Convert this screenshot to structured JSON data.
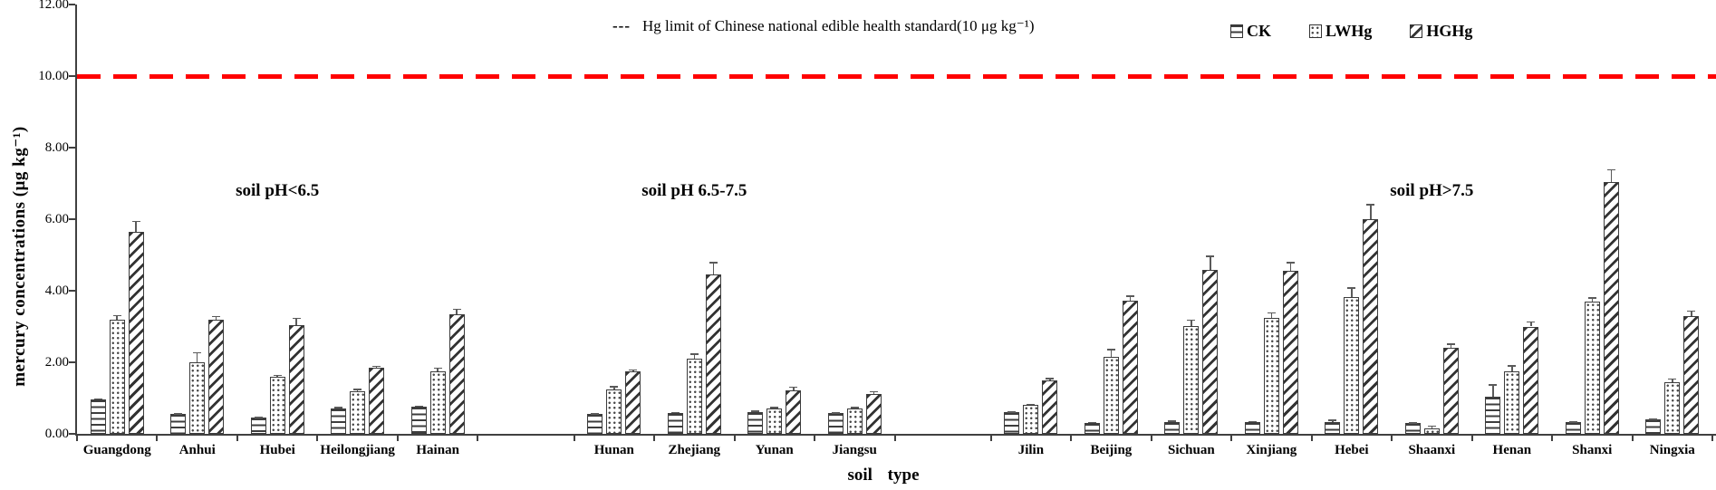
{
  "figure": {
    "limit_annotation": {
      "dash": "---",
      "text": "Hg limit of Chinese national edible health standard(10 μg kg⁻¹)"
    },
    "colors": {
      "limit_line": "#FF0000",
      "bar_outline": "#3C3C3C",
      "axis": "#404040"
    }
  },
  "chart_data": {
    "type": "bar",
    "title": "",
    "ylabel": "mercury concentrations (μg kg⁻¹)",
    "xlabel": "soil type",
    "ylim": [
      0,
      12
    ],
    "ytick_step": 2,
    "ytick_labels": [
      "0.00",
      "2.00",
      "4.00",
      "6.00",
      "8.00",
      "10.00",
      "12.00"
    ],
    "grid": false,
    "legend_position": "top-right",
    "series_names": [
      "CK",
      "LWHg",
      "HGHg"
    ],
    "legend": [
      {
        "label": "CK",
        "pattern": "horizontal-stripes"
      },
      {
        "label": "LWHg",
        "pattern": "dots"
      },
      {
        "label": "HGHg",
        "pattern": "diagonal-stripes"
      }
    ],
    "limit_line": {
      "value": 10,
      "style": "dashed",
      "color": "#FF0000",
      "label": "Hg limit of Chinese national edible health standard(10 μg kg⁻¹)"
    },
    "groups": [
      {
        "label": "soil pH<6.5",
        "label_anchor_index": 2,
        "label_y_value": 6.8,
        "provinces": [
          {
            "name": "Guangdong",
            "values": [
              0.95,
              3.2,
              5.65
            ],
            "errors": [
              0.05,
              0.12,
              0.3
            ]
          },
          {
            "name": "Anhui",
            "values": [
              0.55,
              2.0,
              3.2
            ],
            "errors": [
              0.03,
              0.28,
              0.1
            ]
          },
          {
            "name": "Hubei",
            "values": [
              0.45,
              1.6,
              3.05
            ],
            "errors": [
              0.03,
              0.05,
              0.2
            ]
          },
          {
            "name": "Heilongjiang",
            "values": [
              0.7,
              1.2,
              1.85
            ],
            "errors": [
              0.05,
              0.06,
              0.05
            ]
          },
          {
            "name": "Hainan",
            "values": [
              0.75,
              1.75,
              3.35
            ],
            "errors": [
              0.04,
              0.1,
              0.15
            ]
          }
        ]
      },
      {
        "label": "soil pH 6.5-7.5",
        "label_anchor_index": 1,
        "label_y_value": 6.8,
        "provinces": [
          {
            "name": "Hunan",
            "values": [
              0.55,
              1.25,
              1.75
            ],
            "errors": [
              0.03,
              0.08,
              0.05
            ]
          },
          {
            "name": "Zhejiang",
            "values": [
              0.58,
              2.1,
              4.45
            ],
            "errors": [
              0.03,
              0.15,
              0.35
            ]
          },
          {
            "name": "Yunan",
            "values": [
              0.62,
              0.7,
              1.22
            ],
            "errors": [
              0.03,
              0.05,
              0.1
            ]
          },
          {
            "name": "Jiangsu",
            "values": [
              0.57,
              0.7,
              1.12
            ],
            "errors": [
              0.03,
              0.05,
              0.08
            ]
          }
        ]
      },
      {
        "label": "soil pH>7.5",
        "label_anchor_index": 5,
        "label_y_value": 6.8,
        "provinces": [
          {
            "name": "Jilin",
            "values": [
              0.6,
              0.8,
              1.5
            ],
            "errors": [
              0.03,
              0.04,
              0.06
            ]
          },
          {
            "name": "Beijing",
            "values": [
              0.3,
              2.15,
              3.72
            ],
            "errors": [
              0.03,
              0.22,
              0.15
            ]
          },
          {
            "name": "Sichuan",
            "values": [
              0.33,
              3.02,
              4.58
            ],
            "errors": [
              0.04,
              0.18,
              0.4
            ]
          },
          {
            "name": "Xinjiang",
            "values": [
              0.33,
              3.25,
              4.55
            ],
            "errors": [
              0.03,
              0.15,
              0.25
            ]
          },
          {
            "name": "Hebei",
            "values": [
              0.33,
              3.82,
              6.0
            ],
            "errors": [
              0.07,
              0.28,
              0.42
            ]
          },
          {
            "name": "Shaanxi",
            "values": [
              0.3,
              0.15,
              2.4
            ],
            "errors": [
              0.02,
              0.08,
              0.12
            ]
          },
          {
            "name": "Henan",
            "values": [
              1.05,
              1.75,
              3.0
            ],
            "errors": [
              0.33,
              0.17,
              0.15
            ]
          },
          {
            "name": "Shanxi",
            "values": [
              0.33,
              3.7,
              7.05
            ],
            "errors": [
              0.02,
              0.12,
              0.35
            ]
          },
          {
            "name": "Ningxia",
            "values": [
              0.4,
              1.45,
              3.3
            ],
            "errors": [
              0.03,
              0.1,
              0.15
            ]
          }
        ]
      }
    ]
  }
}
